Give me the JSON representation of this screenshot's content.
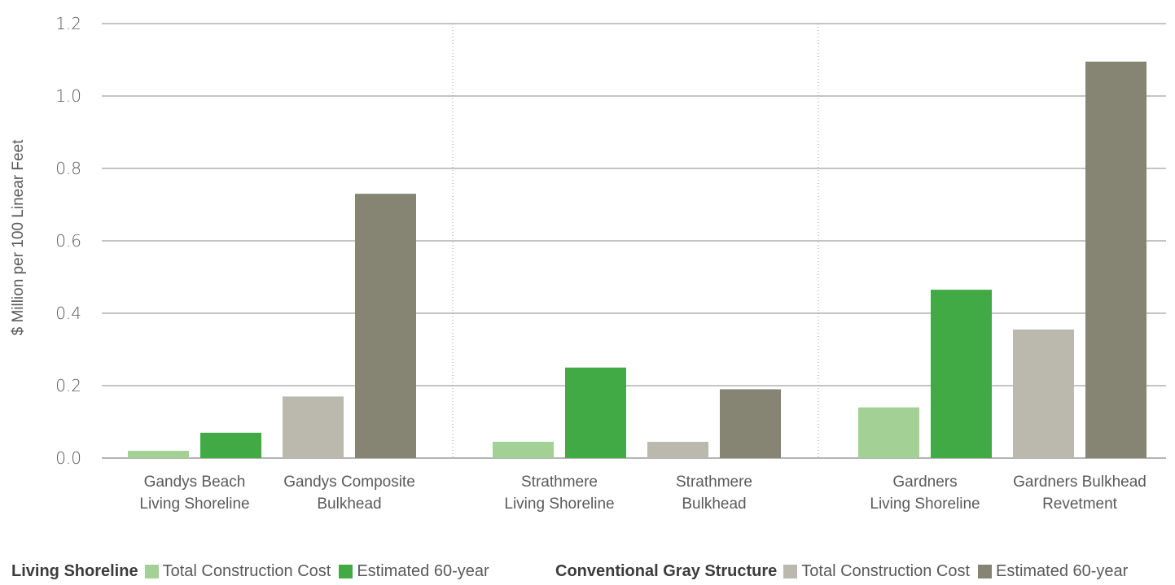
{
  "chart_data": {
    "type": "bar",
    "ylabel": "$ Million per 100 Linear Feet",
    "ylim": [
      0,
      1.2
    ],
    "yticks": [
      "0.0",
      "0.2",
      "0.4",
      "0.6",
      "0.8",
      "1.0",
      "1.2"
    ],
    "grid": true,
    "groups": [
      {
        "categories": [
          {
            "label_lines": [
              "Gandys Beach",
              "Living Shoreline"
            ],
            "type": "living",
            "values": [
              0.02,
              0.07
            ]
          },
          {
            "label_lines": [
              "Gandys Composite",
              "Bulkhead"
            ],
            "type": "gray",
            "values": [
              0.17,
              0.73
            ]
          }
        ]
      },
      {
        "categories": [
          {
            "label_lines": [
              "Strathmere",
              "Living Shoreline"
            ],
            "type": "living",
            "values": [
              0.045,
              0.25
            ]
          },
          {
            "label_lines": [
              "Strathmere",
              "Bulkhead"
            ],
            "type": "gray",
            "values": [
              0.045,
              0.19
            ]
          }
        ]
      },
      {
        "categories": [
          {
            "label_lines": [
              "Gardners",
              "Living Shoreline"
            ],
            "type": "living",
            "values": [
              0.14,
              0.465
            ]
          },
          {
            "label_lines": [
              "Gardners Bulkhead",
              "Revetment"
            ],
            "type": "gray",
            "values": [
              0.355,
              1.095
            ]
          }
        ]
      }
    ],
    "legend": {
      "placement": "bottom",
      "groups": [
        {
          "title": "Living Shoreline",
          "entries": [
            {
              "label": "Total Construction Cost",
              "color": "#a3d094"
            },
            {
              "label": "Estimated 60-year",
              "color": "#42aa45"
            }
          ]
        },
        {
          "title": "Conventional Gray Structure",
          "entries": [
            {
              "label": "Total Construction Cost",
              "color": "#bbb8ad"
            },
            {
              "label": "Estimated 60-year",
              "color": "#868473"
            }
          ]
        }
      ]
    }
  }
}
